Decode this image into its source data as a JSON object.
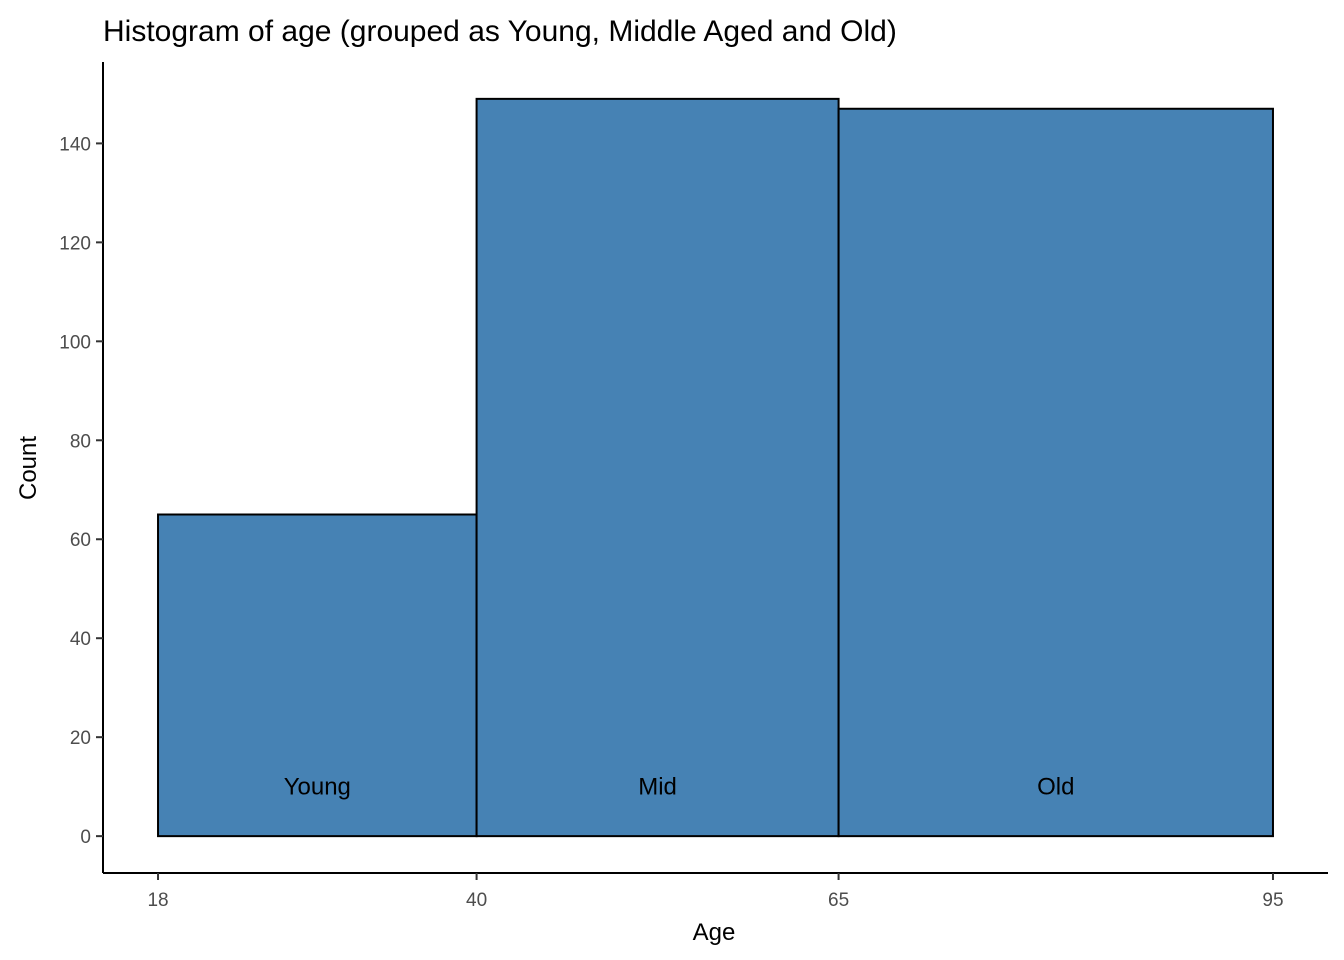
{
  "chart_data": {
    "type": "bar",
    "title": "Histogram of age (grouped as Young, Middle Aged and Old)",
    "xlabel": "Age",
    "ylabel": "Count",
    "bins": [
      {
        "name": "Young",
        "x_start": 18,
        "x_end": 40,
        "count": 65
      },
      {
        "name": "Mid",
        "x_start": 40,
        "x_end": 65,
        "count": 149
      },
      {
        "name": "Old",
        "x_start": 65,
        "x_end": 95,
        "count": 147
      }
    ],
    "x_ticks": [
      18,
      40,
      65,
      95
    ],
    "y_ticks": [
      0,
      20,
      40,
      60,
      80,
      100,
      120,
      140
    ],
    "xlim": [
      14.2,
      98.8
    ],
    "ylim": [
      -7.45,
      156.45
    ],
    "bar_color": "#4682B4",
    "bar_border_color": "#000000",
    "grid": false
  }
}
